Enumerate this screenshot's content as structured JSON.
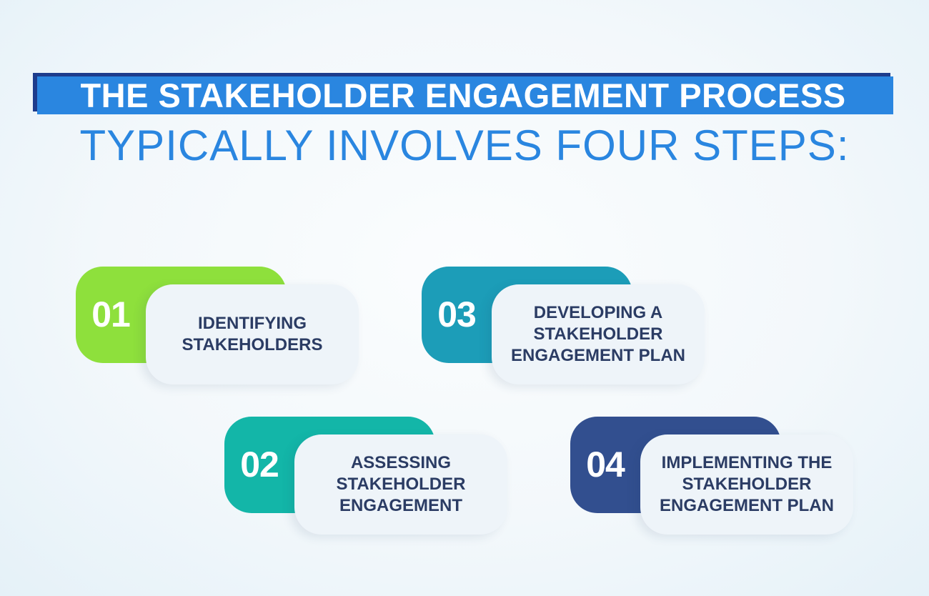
{
  "title": {
    "line1": "THE STAKEHOLDER ENGAGEMENT PROCESS",
    "line2": "TYPICALLY INVOLVES FOUR STEPS:"
  },
  "colors": {
    "title_bar": "#2a86e0",
    "title_shadow": "#1d3c8c",
    "card_background": "#eef4f9",
    "label_text": "#2b3c64"
  },
  "steps": [
    {
      "number": "01",
      "label": "IDENTIFYING STAKEHOLDERS",
      "color": "#8ee03c"
    },
    {
      "number": "02",
      "label": "ASSESSING STAKEHOLDER ENGAGEMENT",
      "color": "#13b6a8"
    },
    {
      "number": "03",
      "label": "DEVELOPING A STAKEHOLDER ENGAGEMENT PLAN",
      "color": "#1c9db8"
    },
    {
      "number": "04",
      "label": "IMPLEMENTING THE STAKEHOLDER ENGAGEMENT PLAN",
      "color": "#324f8f"
    }
  ]
}
